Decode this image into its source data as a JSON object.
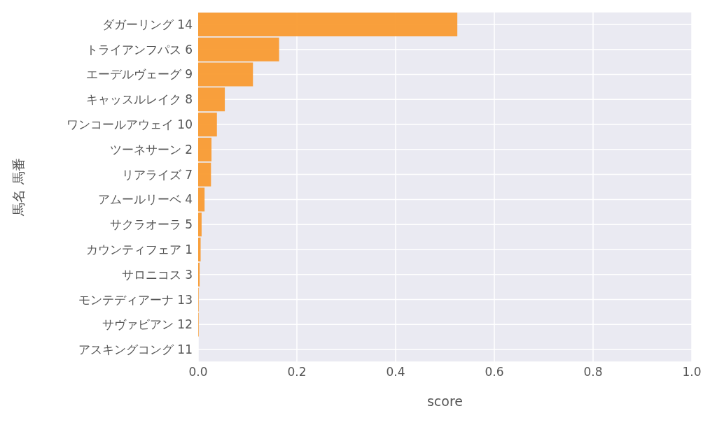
{
  "chart_data": {
    "type": "bar",
    "orientation": "horizontal",
    "xlabel": "score",
    "ylabel": "馬名 馬番",
    "categories": [
      "ダガーリング 14",
      "トライアンフパス 6",
      "エーデルヴェーグ 9",
      "キャッスルレイク 8",
      "ワンコールアウェイ 10",
      "ツーネサーン 2",
      "リアライズ 7",
      "アムールリーベ 4",
      "サクラオーラ 5",
      "カウンティフェア 1",
      "サロニコス 3",
      "モンテディアーナ 13",
      "サヴァビアン 12",
      "アスキングコング 11"
    ],
    "values": [
      0.525,
      0.164,
      0.111,
      0.054,
      0.038,
      0.027,
      0.026,
      0.013,
      0.007,
      0.005,
      0.003,
      0.001,
      0.001,
      0
    ],
    "color": "#f99b31",
    "xlim": [
      0,
      1
    ],
    "xticks": [
      {
        "value": 0,
        "label": "0.0"
      },
      0.2,
      0.4,
      0.6,
      0.8,
      {
        "value": 1,
        "label": "1.0"
      }
    ],
    "grid": true
  }
}
